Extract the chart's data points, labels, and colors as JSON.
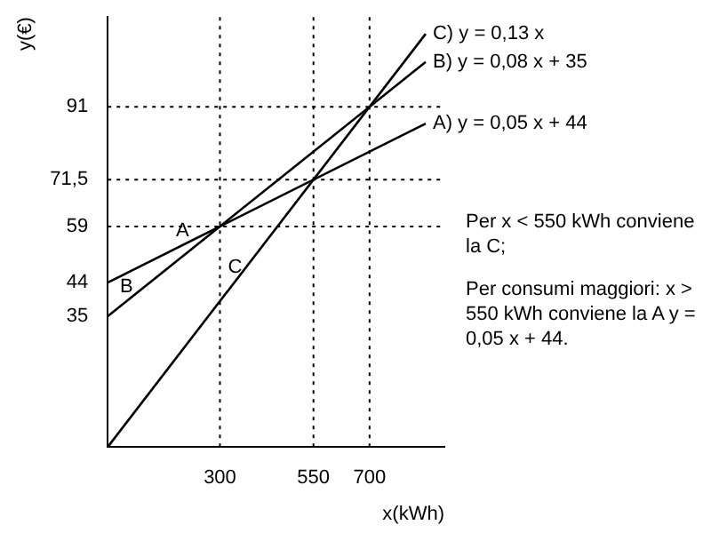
{
  "chart_data": {
    "type": "line",
    "xlabel": "x(kWh)",
    "ylabel": "y(€)",
    "xlim": [
      0,
      900
    ],
    "ylim": [
      0,
      115
    ],
    "x": [
      0,
      850
    ],
    "xticks": [
      300,
      550,
      700
    ],
    "yticks": [
      35,
      44,
      59,
      {
        "value": 71.5,
        "label": "71,5"
      },
      91
    ],
    "series": [
      {
        "name": "C) y = 0,13 x",
        "color": "#000000",
        "values": [
          0,
          110.5
        ]
      },
      {
        "name": "B) y = 0,08 x + 35",
        "color": "#000000",
        "values": [
          35,
          103
        ]
      },
      {
        "name": "A) y = 0,05 x + 44",
        "color": "#000000",
        "values": [
          44,
          86.5
        ]
      }
    ],
    "ref_lines": [
      {
        "axis": "x",
        "value": 300,
        "color": "#000000",
        "line_style": "dotted"
      },
      {
        "axis": "x",
        "value": 550,
        "color": "#000000",
        "line_style": "dotted"
      },
      {
        "axis": "x",
        "value": 700,
        "color": "#000000",
        "line_style": "dotted"
      },
      {
        "axis": "y",
        "value": 59,
        "color": "#000000",
        "line_style": "dotted"
      },
      {
        "axis": "y",
        "value": 71.5,
        "color": "#000000",
        "line_style": "dotted"
      },
      {
        "axis": "y",
        "value": 91,
        "color": "#000000",
        "line_style": "dotted"
      }
    ],
    "annotations": [
      {
        "text": "A",
        "x": 200,
        "y": 54
      },
      {
        "text": "B",
        "x": 50,
        "y": 39
      },
      {
        "text": "C",
        "x": 340,
        "y": 44.2
      },
      "Per x < 550 kWh conviene la C;",
      "Per consumi maggiori: x > 550 kWh conviene la A y = 0,05 x + 44."
    ],
    "grid": false,
    "legend": false,
    "marker": "none",
    "line_style": "solid"
  }
}
